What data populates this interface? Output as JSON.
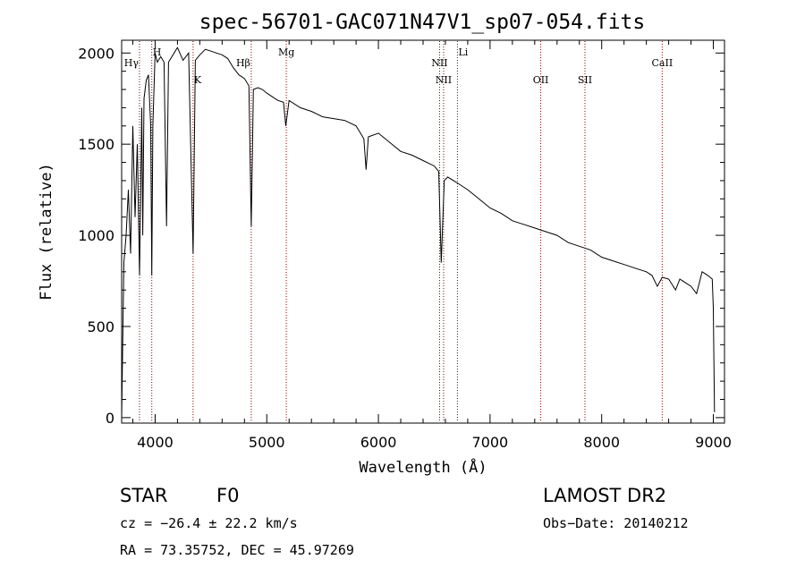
{
  "chart_data": {
    "type": "line",
    "title": "spec-56701-GAC071N47V1_sp07-054.fits",
    "xlabel": "Wavelength (Å)",
    "ylabel": "Flux (relative)",
    "xlim": [
      3700,
      9100
    ],
    "ylim": [
      -30,
      2070
    ],
    "xticks": [
      4000,
      5000,
      6000,
      7000,
      8000,
      9000
    ],
    "yticks": [
      0,
      500,
      1000,
      1500,
      2000
    ],
    "grid": false,
    "series": [
      {
        "x": [
          3700,
          3720,
          3740,
          3760,
          3780,
          3800,
          3820,
          3840,
          3860,
          3880,
          3889,
          3900,
          3920,
          3940,
          3960,
          3970,
          3980,
          4000,
          4020,
          4050,
          4080,
          4102,
          4120,
          4150,
          4200,
          4250,
          4300,
          4340,
          4360,
          4400,
          4450,
          4500,
          4550,
          4600,
          4650,
          4700,
          4750,
          4800,
          4840,
          4861,
          4880,
          4920,
          4960,
          5000,
          5050,
          5100,
          5150,
          5170,
          5200,
          5300,
          5400,
          5500,
          5600,
          5700,
          5800,
          5870,
          5890,
          5910,
          6000,
          6100,
          6200,
          6300,
          6400,
          6500,
          6540,
          6563,
          6590,
          6620,
          6700,
          6800,
          6900,
          7000,
          7100,
          7200,
          7300,
          7400,
          7500,
          7600,
          7700,
          7800,
          7900,
          8000,
          8100,
          8200,
          8300,
          8400,
          8450,
          8498,
          8542,
          8600,
          8662,
          8700,
          8750,
          8800,
          8850,
          8900,
          8950,
          8990,
          9000,
          9010
        ],
        "y": [
          0,
          850,
          1000,
          1250,
          900,
          1600,
          1100,
          1500,
          780,
          1700,
          1000,
          1750,
          1850,
          1880,
          1600,
          780,
          1600,
          2000,
          1950,
          1980,
          1950,
          1050,
          1950,
          1980,
          2030,
          1960,
          2000,
          900,
          1960,
          1990,
          2020,
          2010,
          2000,
          1990,
          1970,
          1920,
          1880,
          1860,
          1820,
          1050,
          1800,
          1810,
          1800,
          1780,
          1760,
          1740,
          1730,
          1600,
          1740,
          1700,
          1680,
          1650,
          1640,
          1630,
          1600,
          1530,
          1360,
          1540,
          1560,
          1510,
          1460,
          1440,
          1410,
          1380,
          1350,
          850,
          1300,
          1320,
          1290,
          1250,
          1200,
          1150,
          1120,
          1080,
          1060,
          1040,
          1020,
          1000,
          960,
          940,
          920,
          880,
          860,
          840,
          820,
          800,
          780,
          720,
          770,
          760,
          700,
          760,
          740,
          720,
          680,
          800,
          780,
          760,
          600,
          30
        ]
      }
    ],
    "lines": [
      {
        "label": "Hγ",
        "x": 3860
      },
      {
        "label": "H",
        "x": 3970
      },
      {
        "label": "K",
        "x": 4340
      },
      {
        "label": "Hβ",
        "x": 4861
      },
      {
        "label": "Mg",
        "x": 5175
      },
      {
        "label": "NII",
        "x": 6548
      },
      {
        "label": "NII",
        "x": 6584
      },
      {
        "label": "Li",
        "x": 6708
      },
      {
        "label": "OII",
        "x": 7454
      },
      {
        "label": "SII",
        "x": 7850
      },
      {
        "label": "CaII",
        "x": 8542
      }
    ],
    "line_color": "#8b0000"
  },
  "info": {
    "class_label": "STAR",
    "subclass_label": "F0",
    "survey": "LAMOST DR2",
    "redshift": "cz = −26.4 ± 22.2 km/s",
    "obs_date": "Obs−Date: 20140212",
    "coords": "RA =  73.35752, DEC =  45.97269"
  }
}
